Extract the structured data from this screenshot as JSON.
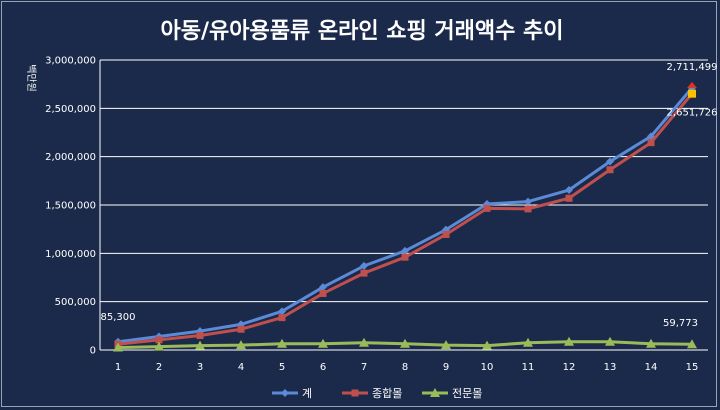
{
  "chart_data": {
    "type": "line",
    "title": "아동/유아용품류 온라인 쇼핑 거래액수 추이",
    "ylabel": "백만원",
    "xlabel": "",
    "categories": [
      "1",
      "2",
      "3",
      "4",
      "5",
      "6",
      "7",
      "8",
      "9",
      "10",
      "11",
      "12",
      "13",
      "14",
      "15"
    ],
    "ylim": [
      0,
      3000000
    ],
    "yticks": [
      0,
      500000,
      1000000,
      1500000,
      2000000,
      2500000,
      3000000
    ],
    "ytick_labels": [
      "0",
      "500,000",
      "1,000,000",
      "1,500,000",
      "2,000,000",
      "2,500,000",
      "3,000,000"
    ],
    "grid": true,
    "legend_position": "bottom",
    "series": [
      {
        "name": "계",
        "color": "#5b8ad6",
        "marker": "diamond",
        "values": [
          85300,
          140000,
          195000,
          265000,
          400000,
          650000,
          870000,
          1025000,
          1245000,
          1510000,
          1535000,
          1655000,
          1950000,
          2210000,
          2711499
        ]
      },
      {
        "name": "종합몰",
        "color": "#c0504d",
        "marker": "square",
        "values": [
          60000,
          105000,
          150000,
          215000,
          335000,
          585000,
          795000,
          960000,
          1195000,
          1465000,
          1460000,
          1570000,
          1865000,
          2145000,
          2651726
        ]
      },
      {
        "name": "전문몰",
        "color": "#9bbb59",
        "marker": "triangle",
        "values": [
          25300,
          35000,
          45000,
          50000,
          65000,
          65000,
          75000,
          65000,
          50000,
          45000,
          75000,
          85000,
          85000,
          65000,
          59773
        ]
      }
    ],
    "annotations": [
      {
        "series": 0,
        "index": 0,
        "text": "85,300"
      },
      {
        "series": 0,
        "index": 14,
        "text": "2,711,499"
      },
      {
        "series": 1,
        "index": 14,
        "text": "2,651,726"
      },
      {
        "series": 2,
        "index": 14,
        "text": "59,773"
      }
    ]
  }
}
